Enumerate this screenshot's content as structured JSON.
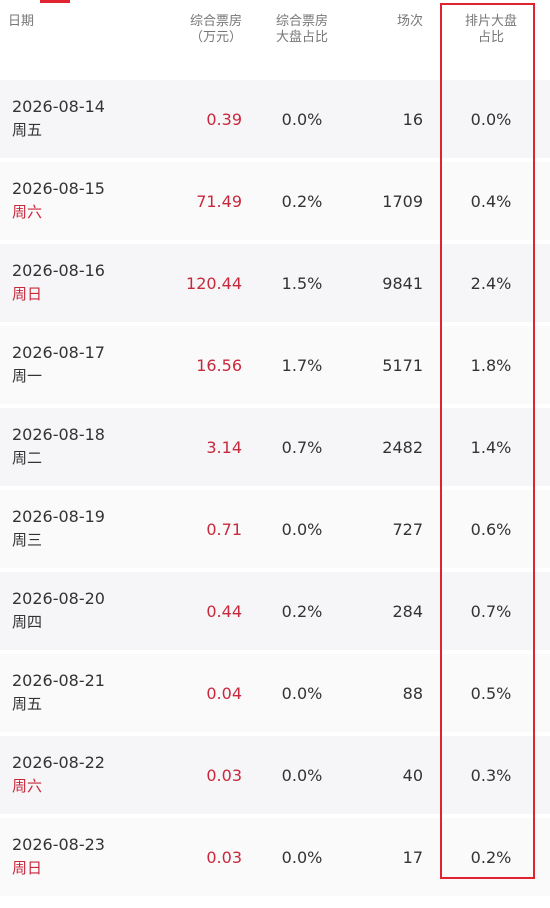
{
  "header": {
    "columns": [
      [
        "日期"
      ],
      [
        "综合票房",
        "（万元）"
      ],
      [
        "综合票房",
        "大盘占比"
      ],
      [
        "场次"
      ],
      [
        "排片大盘",
        "占比"
      ]
    ]
  },
  "value_color": "#c8283c",
  "rows": [
    {
      "date": "2026-08-14",
      "weekday": "周五",
      "weekday_color": "#333333",
      "box_office": "0.39",
      "share": "0.0%",
      "shows": "16",
      "schedule": "0.0%"
    },
    {
      "date": "2026-08-15",
      "weekday": "周六",
      "weekday_color": "#c8283c",
      "box_office": "71.49",
      "share": "0.2%",
      "shows": "1709",
      "schedule": "0.4%"
    },
    {
      "date": "2026-08-16",
      "weekday": "周日",
      "weekday_color": "#c8283c",
      "box_office": "120.44",
      "share": "1.5%",
      "shows": "9841",
      "schedule": "2.4%"
    },
    {
      "date": "2026-08-17",
      "weekday": "周一",
      "weekday_color": "#333333",
      "box_office": "16.56",
      "share": "1.7%",
      "shows": "5171",
      "schedule": "1.8%"
    },
    {
      "date": "2026-08-18",
      "weekday": "周二",
      "weekday_color": "#333333",
      "box_office": "3.14",
      "share": "0.7%",
      "shows": "2482",
      "schedule": "1.4%"
    },
    {
      "date": "2026-08-19",
      "weekday": "周三",
      "weekday_color": "#333333",
      "box_office": "0.71",
      "share": "0.0%",
      "shows": "727",
      "schedule": "0.6%"
    },
    {
      "date": "2026-08-20",
      "weekday": "周四",
      "weekday_color": "#333333",
      "box_office": "0.44",
      "share": "0.2%",
      "shows": "284",
      "schedule": "0.7%"
    },
    {
      "date": "2026-08-21",
      "weekday": "周五",
      "weekday_color": "#333333",
      "box_office": "0.04",
      "share": "0.0%",
      "shows": "88",
      "schedule": "0.5%"
    },
    {
      "date": "2026-08-22",
      "weekday": "周六",
      "weekday_color": "#c8283c",
      "box_office": "0.03",
      "share": "0.0%",
      "shows": "40",
      "schedule": "0.3%"
    },
    {
      "date": "2026-08-23",
      "weekday": "周日",
      "weekday_color": "#c8283c",
      "box_office": "0.03",
      "share": "0.0%",
      "shows": "17",
      "schedule": "0.2%"
    }
  ]
}
